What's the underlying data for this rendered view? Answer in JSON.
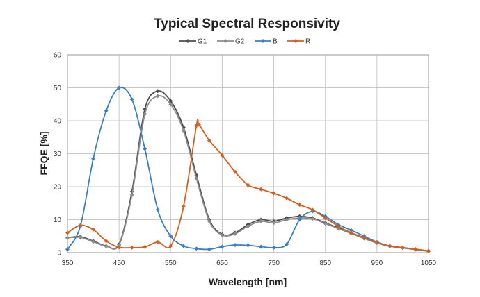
{
  "chart_data": {
    "type": "line",
    "title": "Typical Spectral Responsivity",
    "xlabel": "Wavelength [nm]",
    "ylabel": "FFQE [%]",
    "xlim": [
      350,
      1050
    ],
    "ylim": [
      0,
      60
    ],
    "xticks": [
      350,
      450,
      550,
      650,
      750,
      850,
      950,
      1050
    ],
    "yticks": [
      0,
      10,
      20,
      30,
      40,
      50,
      60
    ],
    "grid": true,
    "legend_position": "top",
    "series": [
      {
        "name": "G1",
        "color": "#4d4d4d",
        "x": [
          350,
          375,
          400,
          425,
          450,
          475,
          500,
          525,
          550,
          575,
          600,
          625,
          650,
          675,
          700,
          725,
          750,
          775,
          800,
          825,
          850,
          875,
          900,
          925,
          950,
          975,
          1000,
          1025,
          1050
        ],
        "y": [
          4.5,
          4.8,
          3.5,
          2.0,
          2.5,
          18.5,
          43.5,
          49.0,
          46.0,
          38.0,
          23.5,
          10.0,
          5.5,
          6.0,
          8.5,
          10.0,
          9.5,
          10.5,
          11.0,
          10.5,
          9.0,
          7.5,
          6.0,
          4.5,
          3.0,
          2.0,
          1.5,
          1.0,
          0.5
        ]
      },
      {
        "name": "G2",
        "color": "#8c8c8c",
        "x": [
          350,
          375,
          400,
          425,
          450,
          475,
          500,
          525,
          550,
          575,
          600,
          625,
          650,
          675,
          700,
          725,
          750,
          775,
          800,
          825,
          850,
          875,
          900,
          925,
          950,
          975,
          1000,
          1025,
          1050
        ],
        "y": [
          4.5,
          4.6,
          3.3,
          1.9,
          2.3,
          17.5,
          42.0,
          47.5,
          45.0,
          37.0,
          22.5,
          9.5,
          5.3,
          5.7,
          8.0,
          9.5,
          9.0,
          10.0,
          10.5,
          10.3,
          8.8,
          7.3,
          5.8,
          4.3,
          2.9,
          1.9,
          1.4,
          0.9,
          0.4
        ]
      },
      {
        "name": "B",
        "color": "#3a7fc1",
        "x": [
          350,
          375,
          400,
          425,
          450,
          475,
          500,
          525,
          550,
          575,
          600,
          625,
          650,
          675,
          700,
          725,
          750,
          775,
          800,
          825,
          850,
          875,
          900,
          925,
          950,
          975,
          1000,
          1025,
          1050
        ],
        "y": [
          1.0,
          8.0,
          28.5,
          43.0,
          50.0,
          46.5,
          31.5,
          13.0,
          5.0,
          2.0,
          1.2,
          1.0,
          1.8,
          2.3,
          2.2,
          1.8,
          1.5,
          2.5,
          10.0,
          12.5,
          11.0,
          8.5,
          6.8,
          5.0,
          3.2,
          2.0,
          1.5,
          1.0,
          0.5
        ]
      },
      {
        "name": "R",
        "color": "#d45f1e",
        "x": [
          350,
          375,
          400,
          425,
          450,
          475,
          500,
          525,
          550,
          575,
          600,
          605,
          625,
          650,
          675,
          700,
          725,
          750,
          775,
          800,
          825,
          850,
          875,
          900,
          925,
          950,
          975,
          1000,
          1025,
          1050
        ],
        "y": [
          6.0,
          8.3,
          7.0,
          3.5,
          1.6,
          1.5,
          1.7,
          3.2,
          2.0,
          14.0,
          38.5,
          38.8,
          34.0,
          29.5,
          24.5,
          20.5,
          19.2,
          18.0,
          16.5,
          14.5,
          13.0,
          10.5,
          8.0,
          6.0,
          4.5,
          3.0,
          2.0,
          1.5,
          1.0,
          0.5
        ]
      }
    ]
  }
}
